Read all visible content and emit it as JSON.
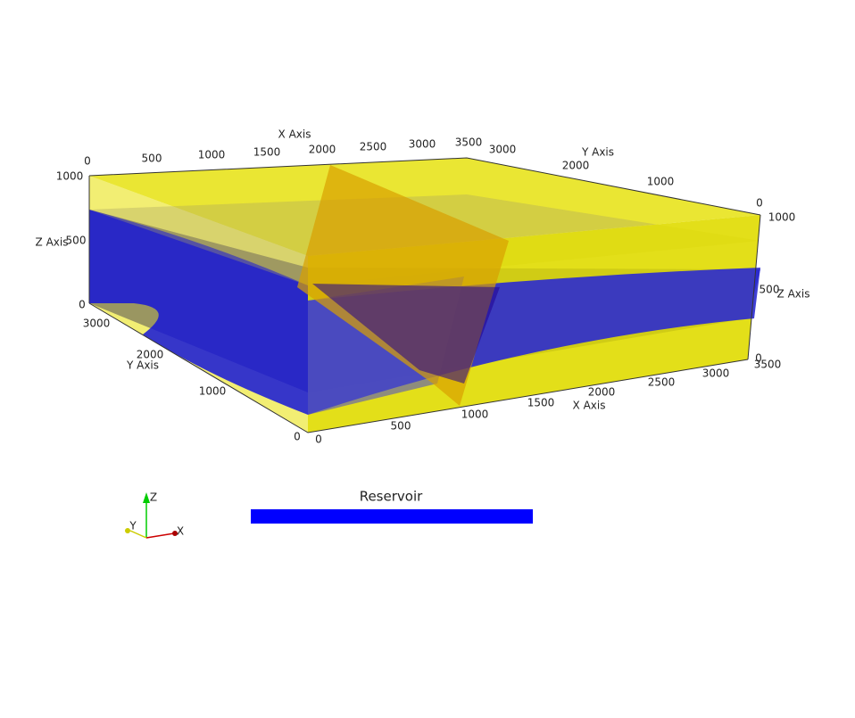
{
  "axes": {
    "x_back": {
      "title": "X Axis",
      "ticks": [
        "0",
        "500",
        "1000",
        "1500",
        "2000",
        "2500",
        "3000",
        "3500"
      ]
    },
    "x_front": {
      "title": "X Axis",
      "ticks": [
        "0",
        "500",
        "1000",
        "1500",
        "2000",
        "2500",
        "3000",
        "3500"
      ]
    },
    "y_right": {
      "title": "Y Axis",
      "ticks": [
        "3000",
        "2000",
        "1000",
        "0"
      ]
    },
    "y_left": {
      "title": "Y Axis",
      "ticks": [
        "3000",
        "2000",
        "1000",
        "0"
      ]
    },
    "z_left": {
      "title": "Z Axis",
      "ticks": [
        "1000",
        "500",
        "0"
      ]
    },
    "z_right": {
      "title": "Z Axis",
      "ticks": [
        "1000",
        "500",
        "0"
      ]
    }
  },
  "legend": {
    "label": "Reservoir"
  },
  "orientation": {
    "z": "Z",
    "y": "Y",
    "x": "X"
  }
}
